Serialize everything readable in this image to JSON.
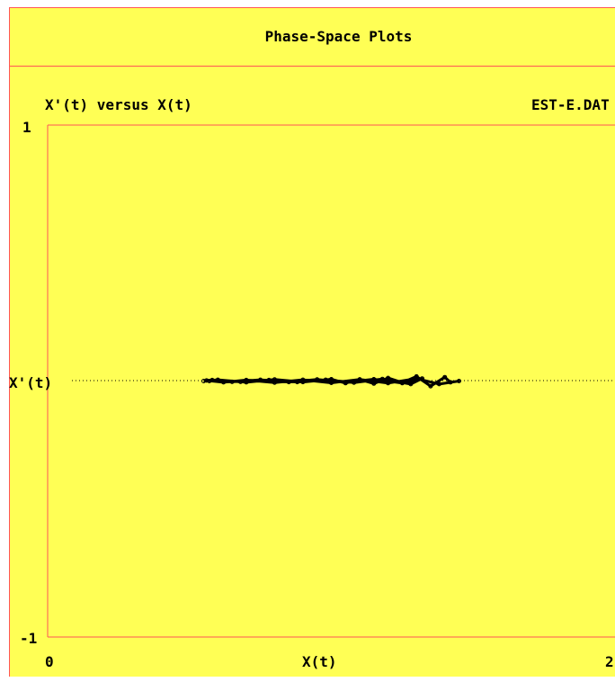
{
  "window": {
    "title": "Phase-Space Plots"
  },
  "colors": {
    "panel_bg": "#ffff55",
    "border": "#ff5555",
    "ink": "#000000"
  },
  "chart_data": {
    "type": "line",
    "title": "X'(t) versus X(t)",
    "source_label": "EST-E.DAT",
    "xlabel": "X(t)",
    "ylabel": "X'(t)",
    "xlim": [
      0,
      2
    ],
    "ylim": [
      -1,
      1
    ],
    "x_tick_labels": [
      "0",
      "2"
    ],
    "y_tick_labels": [
      "1",
      "-1"
    ],
    "zero_line": "dotted",
    "grid": false,
    "legend": "none",
    "series": [
      {
        "x": [
          0.55,
          0.6,
          0.7,
          0.8,
          0.9,
          1.0,
          1.05,
          1.1,
          1.15,
          1.2,
          1.25,
          1.3,
          1.35,
          1.4,
          1.42,
          1.45,
          1.38,
          1.3,
          1.2,
          1.1,
          1.0,
          0.9,
          0.8,
          0.7,
          0.62,
          0.56,
          0.58,
          0.65,
          0.75,
          0.85,
          0.95,
          1.05,
          1.15,
          1.25,
          1.32,
          1.28,
          1.18,
          1.08,
          0.98,
          0.88,
          0.78,
          0.68,
          0.6,
          0.57
        ],
        "y": [
          0.0,
          0.005,
          -0.005,
          0.006,
          -0.004,
          0.007,
          -0.008,
          0.006,
          -0.01,
          0.012,
          -0.006,
          0.018,
          -0.02,
          0.015,
          -0.005,
          0.0,
          -0.012,
          0.01,
          -0.008,
          0.006,
          -0.007,
          0.005,
          -0.006,
          0.004,
          -0.005,
          0.002,
          0.004,
          -0.003,
          0.005,
          -0.004,
          0.006,
          -0.005,
          0.007,
          -0.008,
          0.01,
          -0.012,
          0.008,
          -0.006,
          0.005,
          -0.004,
          0.004,
          -0.003,
          0.003,
          0.0
        ]
      }
    ]
  }
}
